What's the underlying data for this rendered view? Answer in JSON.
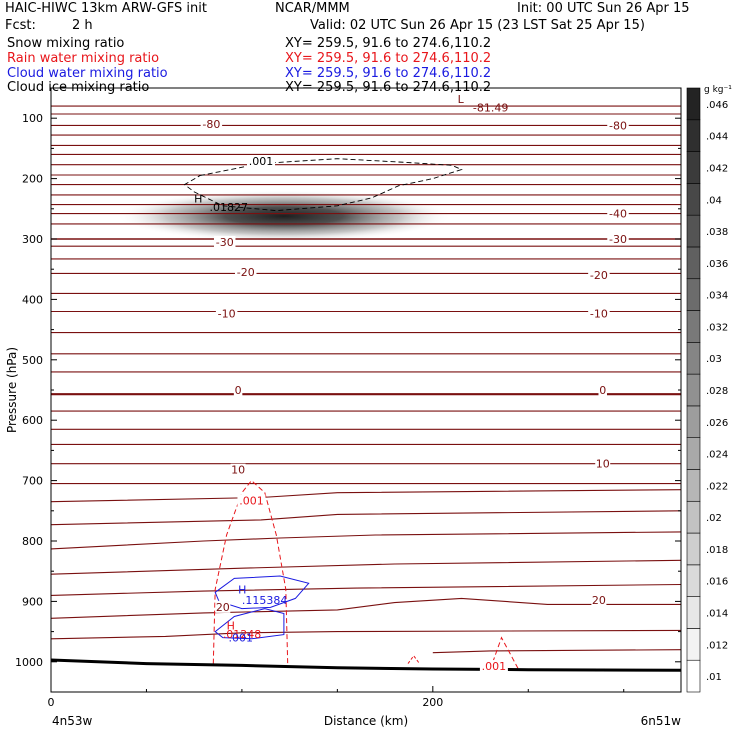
{
  "header": {
    "model": "HAIC-HIWC 13km ARW-GFS init",
    "org": "NCAR/MMM",
    "init": "Init: 00 UTC Sun 26 Apr 15",
    "fcst_label": "Fcst:",
    "fcst_value": "2 h",
    "valid": "Valid: 02 UTC Sun 26 Apr 15 (23 LST Sat 25 Apr 15)",
    "fields": [
      {
        "name": "Snow mixing ratio",
        "xy": "XY= 259.5, 91.6 to 274.6,110.2",
        "color": "#000000"
      },
      {
        "name": "Rain water mixing ratio",
        "xy": "XY= 259.5, 91.6 to 274.6,110.2",
        "color": "#e8161b"
      },
      {
        "name": "Cloud water mixing ratio",
        "xy": "XY= 259.5, 91.6 to 274.6,110.2",
        "color": "#1a1ae0"
      },
      {
        "name": "Cloud ice mixing ratio",
        "xy": "XY= 259.5, 91.6 to 274.6,110.2",
        "color": "#000000"
      }
    ]
  },
  "chart_data": {
    "type": "contour cross-section",
    "ylabel": "Pressure (hPa)",
    "xlabel": "Distance (km)",
    "x_start_label": "4n53w",
    "x_end_label": "6n51w",
    "xlim": [
      0,
      330
    ],
    "ylim": [
      1050,
      50
    ],
    "y_ticks": [
      100,
      200,
      300,
      400,
      500,
      600,
      700,
      800,
      900,
      1000
    ],
    "x_ticks": [
      0,
      200
    ],
    "temperature_color": "#7a1010",
    "temperature_contour_labels": [
      {
        "text": "-80",
        "x": 84,
        "y": 110
      },
      {
        "text": "-80",
        "x": 297,
        "y": 112
      },
      {
        "text": "-40",
        "x": 297,
        "y": 258
      },
      {
        "text": "-30",
        "x": 91,
        "y": 305
      },
      {
        "text": "-30",
        "x": 297,
        "y": 300
      },
      {
        "text": "-20",
        "x": 102,
        "y": 355
      },
      {
        "text": "-20",
        "x": 287,
        "y": 360
      },
      {
        "text": "-10",
        "x": 92,
        "y": 423
      },
      {
        "text": "-10",
        "x": 287,
        "y": 423
      },
      {
        "text": "0",
        "x": 98,
        "y": 550
      },
      {
        "text": "0",
        "x": 289,
        "y": 550
      },
      {
        "text": "10",
        "x": 98,
        "y": 682
      },
      {
        "text": "10",
        "x": 289,
        "y": 672
      },
      {
        "text": "20",
        "x": 90,
        "y": 909
      },
      {
        "text": "20",
        "x": 287,
        "y": 898
      }
    ],
    "extrema_labels": [
      {
        "text": "L",
        "x": 213,
        "y": 68,
        "color": "#7a1010"
      },
      {
        "text": "-81.49",
        "x": 221,
        "y": 82,
        "color": "#7a1010"
      },
      {
        "text": "H",
        "x": 75,
        "y": 233,
        "color": "#000000"
      },
      {
        "text": ".01827",
        "x": 83,
        "y": 247,
        "color": "#000000"
      },
      {
        "text": "H",
        "x": 98,
        "y": 880,
        "color": "#1a1ae0"
      },
      {
        "text": ".115384",
        "x": 100,
        "y": 898,
        "color": "#1a1ae0"
      },
      {
        "text": "H",
        "x": 92,
        "y": 940,
        "color": "#e8161b"
      },
      {
        "text": ".01248",
        "x": 90,
        "y": 954,
        "color": "#e8161b"
      },
      {
        "text": ".001",
        "x": 93,
        "y": 960,
        "color": "#1a1ae0"
      }
    ],
    "other_labels": [
      {
        "text": ".001",
        "x": 110,
        "y": 171,
        "color": "#000000"
      },
      {
        "text": ".001",
        "x": 105,
        "y": 733,
        "color": "#e8161b"
      },
      {
        "text": ".001",
        "x": 232,
        "y": 1007,
        "color": "#e8161b"
      }
    ],
    "colorbar": {
      "unit": "g kg⁻¹",
      "levels": [
        ".01",
        ".012",
        ".014",
        ".016",
        ".018",
        ".02",
        ".022",
        ".024",
        ".026",
        ".028",
        ".03",
        ".032",
        ".034",
        ".036",
        ".038",
        ".04",
        ".042",
        ".044",
        ".046"
      ]
    }
  }
}
